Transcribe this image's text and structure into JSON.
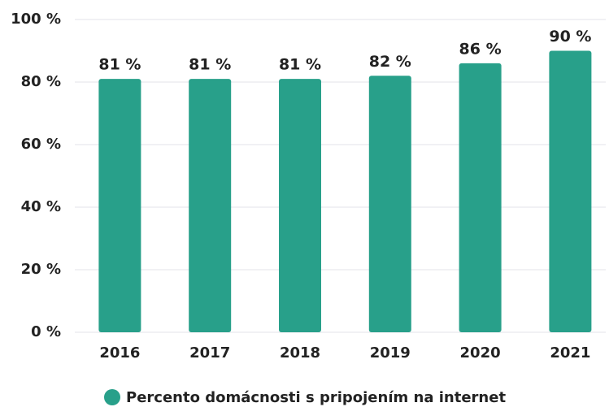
{
  "chart_data": {
    "type": "bar",
    "categories": [
      "2016",
      "2017",
      "2018",
      "2019",
      "2020",
      "2021"
    ],
    "series": [
      {
        "name": "Percento domácnosti s pripojením na internet",
        "color": "#28a08a",
        "values": [
          81,
          81,
          81,
          82,
          86,
          90
        ],
        "value_labels": [
          "81 %",
          "81 %",
          "81 %",
          "82 %",
          "86 %",
          "90 %"
        ]
      }
    ],
    "ylim": [
      0,
      100
    ],
    "yticks": [
      {
        "value": 0,
        "label": "0 %"
      },
      {
        "value": 20,
        "label": "20 %"
      },
      {
        "value": 40,
        "label": "40 %"
      },
      {
        "value": 60,
        "label": "60 %"
      },
      {
        "value": 80,
        "label": "80 %"
      },
      {
        "value": 100,
        "label": "100 %"
      }
    ],
    "grid": true,
    "legend": "bottom"
  }
}
